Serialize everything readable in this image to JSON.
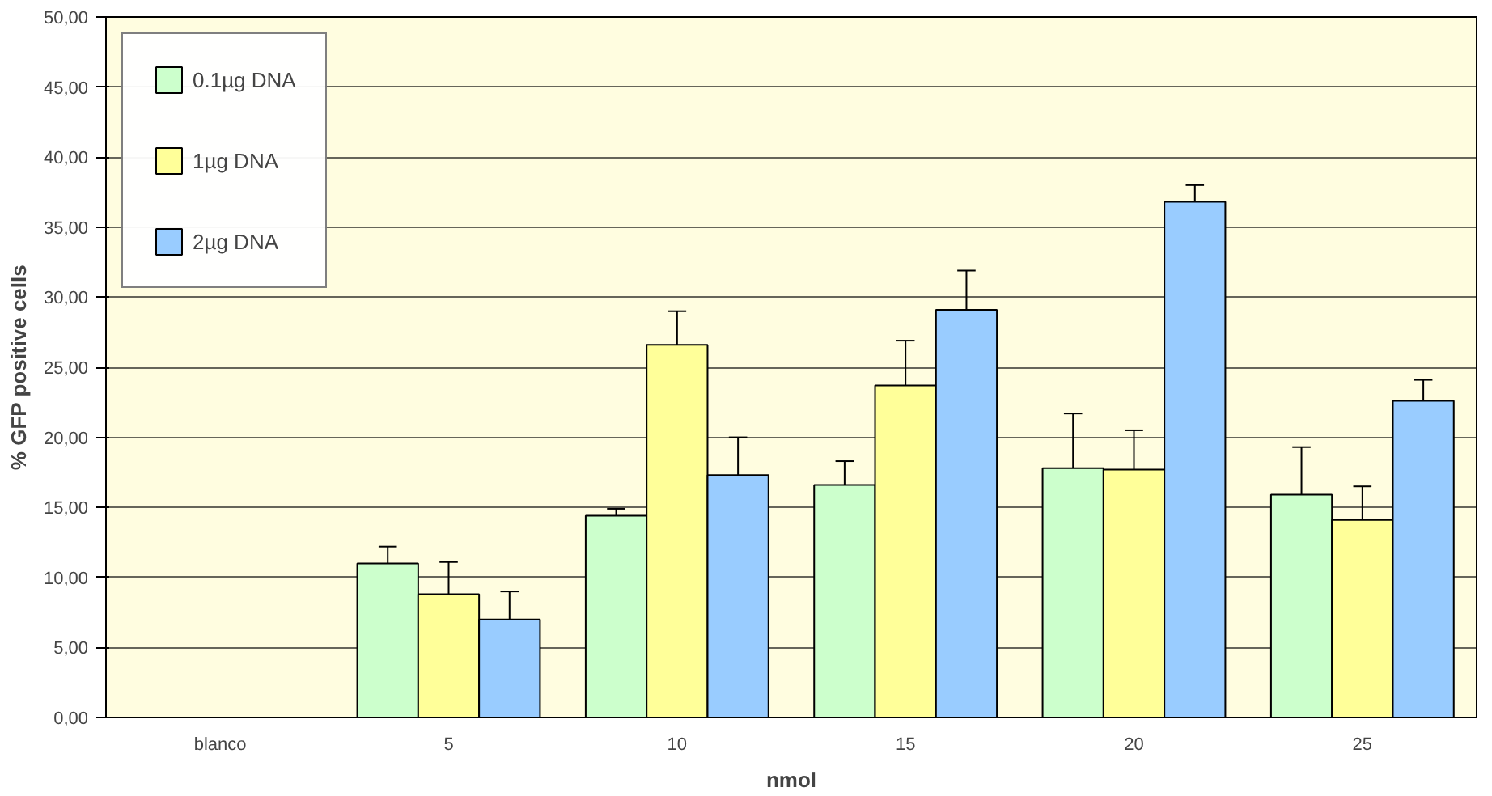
{
  "chart_data": {
    "type": "bar",
    "xlabel": "nmol",
    "ylabel": "% GFP positive cells",
    "categories": [
      "blanco",
      "5",
      "10",
      "15",
      "20",
      "25"
    ],
    "series": [
      {
        "name": "0.1µg DNA",
        "color": "#ccffcc",
        "values": [
          null,
          11.0,
          14.4,
          16.6,
          17.8,
          15.9
        ],
        "errors": [
          null,
          [
            11.0,
            12.2
          ],
          [
            14.4,
            14.9
          ],
          [
            16.6,
            18.3
          ],
          [
            17.8,
            21.7
          ],
          [
            15.9,
            19.3
          ]
        ]
      },
      {
        "name": "1µg DNA",
        "color": "#ffff99",
        "values": [
          null,
          8.8,
          26.6,
          23.7,
          17.7,
          14.1
        ],
        "errors": [
          null,
          [
            8.8,
            11.1
          ],
          [
            26.6,
            29.0
          ],
          [
            23.7,
            26.9
          ],
          [
            17.7,
            20.5
          ],
          [
            14.1,
            16.5
          ]
        ]
      },
      {
        "name": "2µg DNA",
        "color": "#99ccff",
        "values": [
          null,
          7.0,
          17.3,
          29.1,
          36.8,
          22.6
        ],
        "errors": [
          null,
          [
            7.0,
            9.0
          ],
          [
            17.3,
            20.0
          ],
          [
            29.1,
            31.9
          ],
          [
            36.8,
            38.0
          ],
          [
            22.6,
            24.1
          ]
        ]
      }
    ],
    "ylim": [
      0,
      50
    ],
    "yticks": [
      {
        "value": 0,
        "label": "0,00"
      },
      {
        "value": 5,
        "label": "5,00"
      },
      {
        "value": 10,
        "label": "10,00"
      },
      {
        "value": 15,
        "label": "15,00"
      },
      {
        "value": 20,
        "label": "20,00"
      },
      {
        "value": 25,
        "label": "25,00"
      },
      {
        "value": 30,
        "label": "30,00"
      },
      {
        "value": 35,
        "label": "35,00"
      },
      {
        "value": 40,
        "label": "40,00"
      },
      {
        "value": 45,
        "label": "45,00"
      },
      {
        "value": 50,
        "label": "50,00"
      }
    ],
    "grid": "y",
    "legend": "top left"
  }
}
